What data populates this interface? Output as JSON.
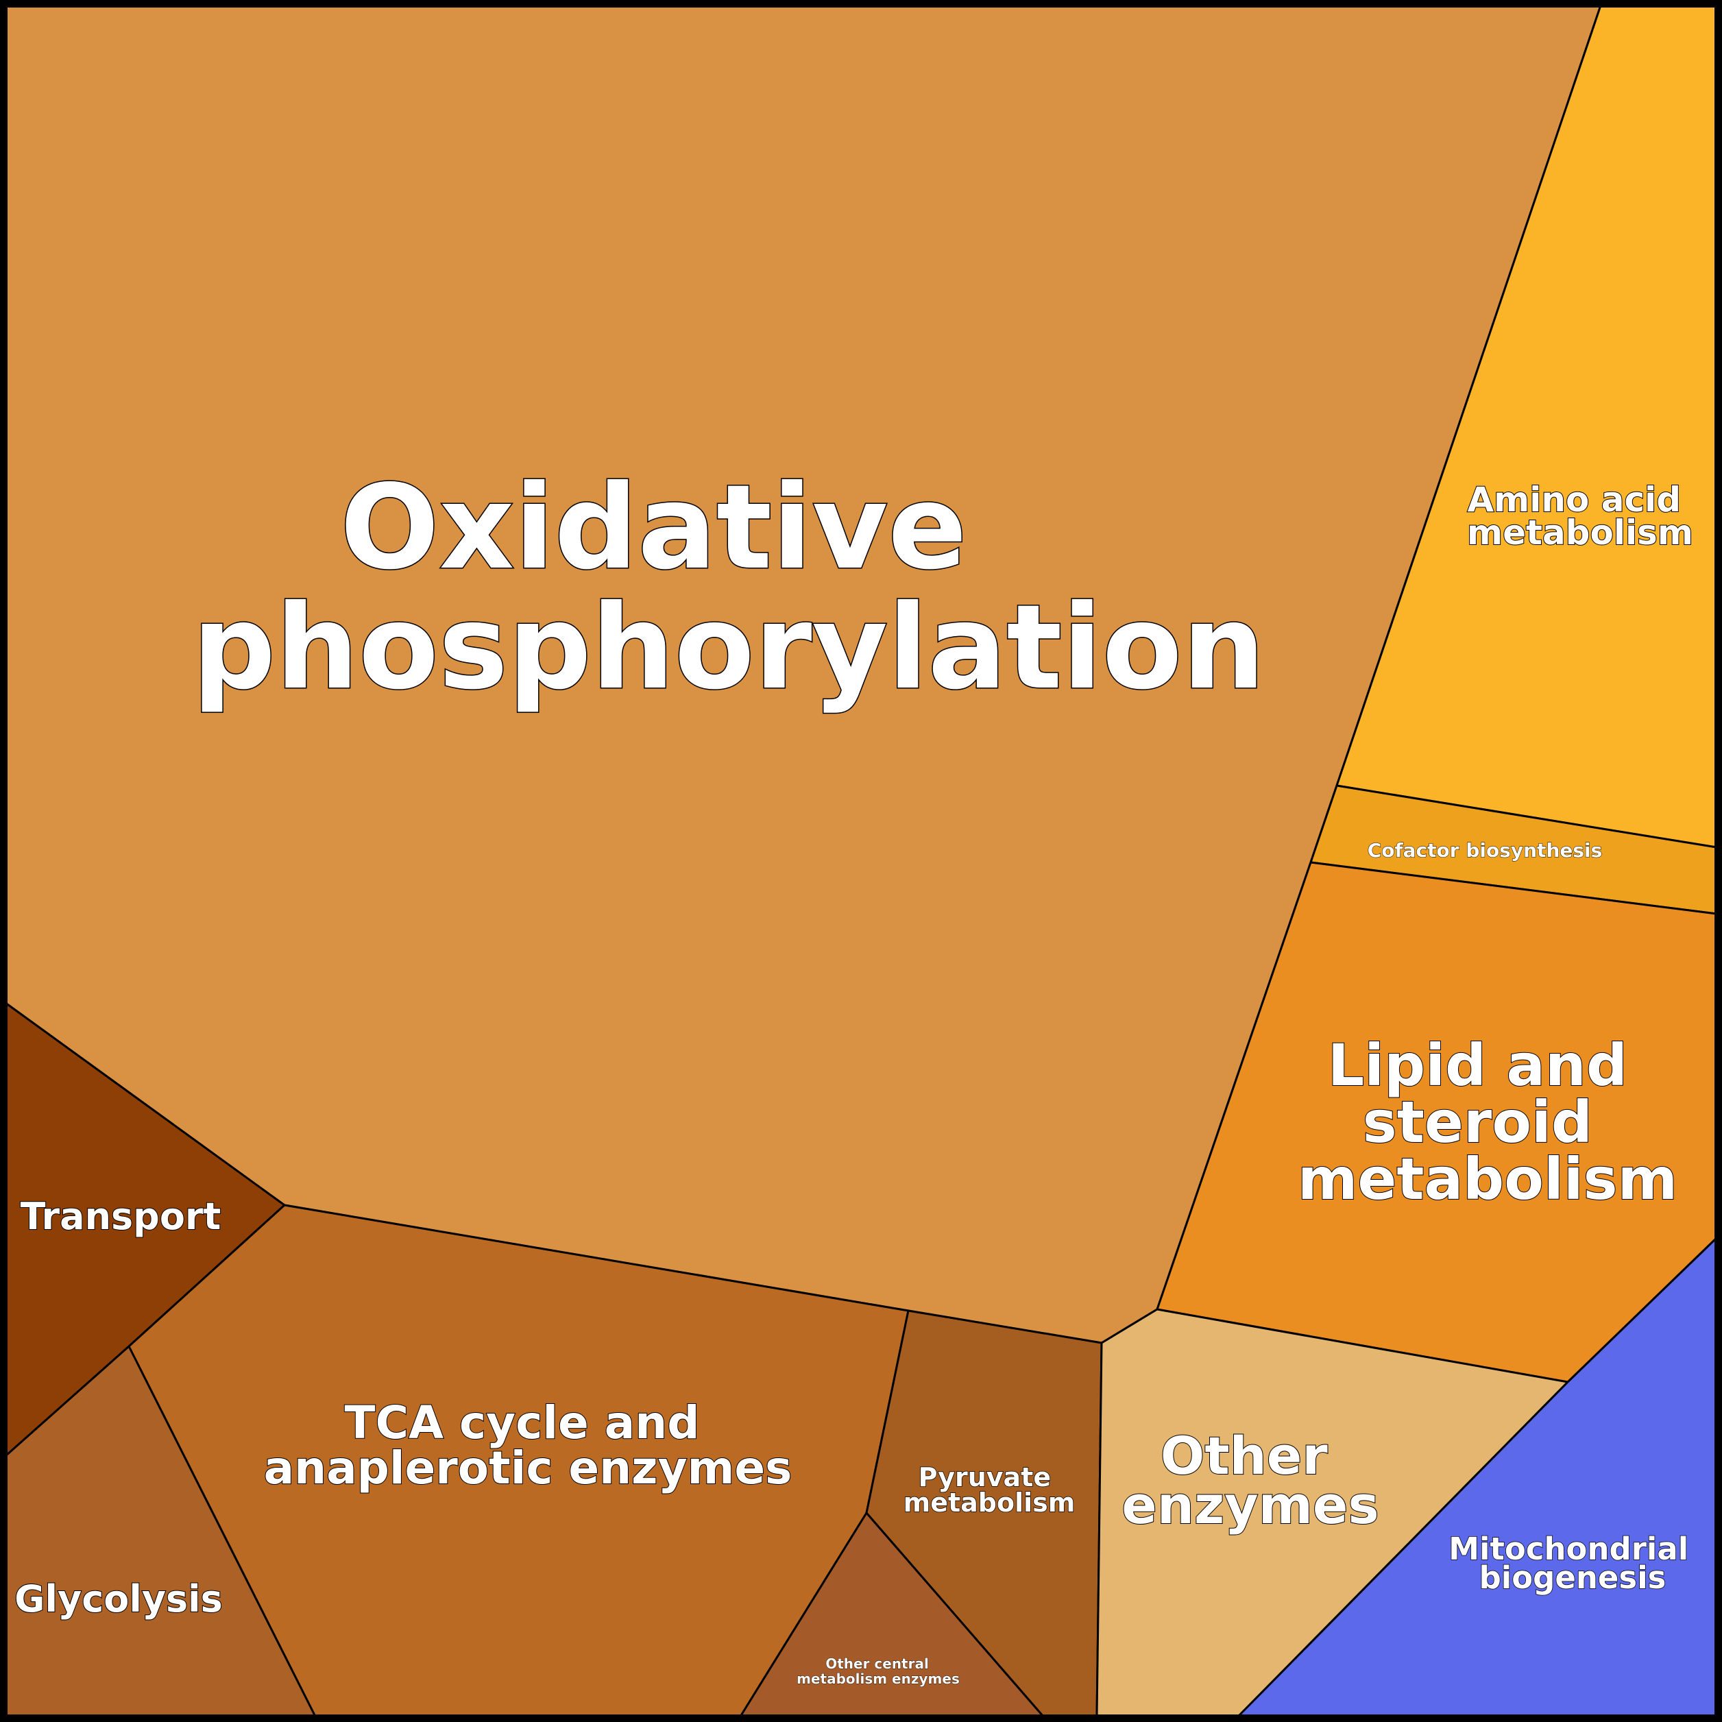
{
  "diagram": {
    "type": "voronoi-treemap",
    "border_color": "#000000",
    "label_color": "#ffffff",
    "cells": [
      {
        "id": "oxidative-phosphorylation",
        "label_lines": [
          "Oxidative",
          "phosphorylation"
        ],
        "color": "#D99143"
      },
      {
        "id": "amino-acid-metabolism",
        "label_lines": [
          "Amino acid",
          "metabolism"
        ],
        "color": "#FBB427"
      },
      {
        "id": "cofactor-biosynthesis",
        "label_lines": [
          "Cofactor biosynthesis"
        ],
        "color": "#EEA11C"
      },
      {
        "id": "lipid-and-steroid-metabolism",
        "label_lines": [
          "Lipid and",
          "steroid",
          "metabolism"
        ],
        "color": "#EA8E22"
      },
      {
        "id": "transport",
        "label_lines": [
          "Transport"
        ],
        "color": "#8E3F05"
      },
      {
        "id": "tca-cycle",
        "label_lines": [
          "TCA cycle and",
          "anaplerotic enzymes"
        ],
        "color": "#BA6A22"
      },
      {
        "id": "glycolysis",
        "label_lines": [
          "Glycolysis"
        ],
        "color": "#AC6127"
      },
      {
        "id": "pyruvate-metabolism",
        "label_lines": [
          "Pyruvate",
          "metabolism"
        ],
        "color": "#A55E1F"
      },
      {
        "id": "other-central-metabolism-enzymes",
        "label_lines": [
          "Other central",
          "metabolism enzymes"
        ],
        "color": "#A45A29"
      },
      {
        "id": "other-enzymes",
        "label_lines": [
          "Other",
          "enzymes"
        ],
        "color": "#E5B66F"
      },
      {
        "id": "mitochondrial-biogenesis",
        "label_lines": [
          "Mitochondrial",
          "biogenesis"
        ],
        "color": "#5B69EA"
      }
    ]
  }
}
